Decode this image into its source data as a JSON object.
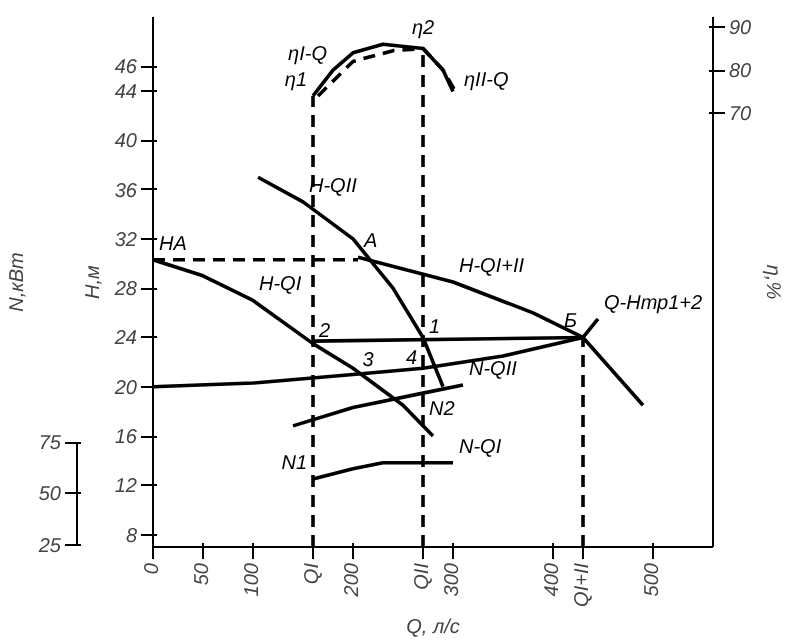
{
  "chart_data": {
    "type": "line",
    "xlabel": "Q, л/с",
    "ylabel": "H,м",
    "y2label": "N,кВт",
    "y3label": "η,%",
    "xlim": [
      0,
      560
    ],
    "xticks": [
      0,
      50,
      100,
      {
        "value": 160,
        "label": "QI"
      },
      200,
      {
        "value": 270,
        "label": "QII"
      },
      300,
      400,
      {
        "value": 430,
        "label": "QI+II"
      },
      500
    ],
    "ylim": [
      7,
      50
    ],
    "yticks": [
      8,
      12,
      16,
      20,
      24,
      28,
      32,
      36,
      40,
      44,
      46
    ],
    "y2lim": [
      23.8,
      282.8
    ],
    "y2ticks": [
      25,
      50,
      75
    ],
    "y3lim": [
      -30.6,
      92.3
    ],
    "y3ticks": [
      70,
      80,
      90
    ],
    "grid": false,
    "marker": "none",
    "line_style": "solid",
    "series": [
      {
        "color": "#000000",
        "x": [
          0,
          50,
          100,
          160,
          200,
          250,
          280
        ],
        "values": [
          30.3,
          29,
          27,
          23.5,
          21.5,
          18.5,
          16
        ]
      },
      {
        "color": "#000000",
        "x": [
          105,
          150,
          200,
          240,
          270,
          290
        ],
        "values": [
          37,
          35,
          32,
          28,
          24,
          20
        ]
      },
      {
        "color": "#000000",
        "x": [
          205,
          300,
          380,
          430,
          490
        ],
        "values": [
          30.5,
          28.5,
          26,
          24,
          18.5
        ]
      },
      {
        "color": "#000000",
        "x": [
          0,
          100,
          200,
          270,
          350,
          430,
          445
        ],
        "values": [
          20,
          20.3,
          21,
          21.5,
          22.5,
          24,
          25.5
        ]
      },
      {
        "color": "#000000",
        "x": [
          160,
          430
        ],
        "values": [
          23.7,
          24
        ]
      },
      {
        "color": "#000000",
        "line_style": "dashed",
        "x": [
          0,
          205
        ],
        "values": [
          30.3,
          30.3
        ]
      },
      {
        "color": "#000000",
        "line_style": "dashed",
        "x": [
          160,
          160
        ],
        "values": [
          7,
          43.6
        ]
      },
      {
        "color": "#000000",
        "line_style": "dashed",
        "x": [
          270,
          270
        ],
        "values": [
          7,
          47.4
        ]
      },
      {
        "color": "#000000",
        "line_style": "dashed",
        "x": [
          430,
          430
        ],
        "values": [
          7,
          24
        ]
      },
      {
        "color": "#000000",
        "axis": "y2",
        "x": [
          160,
          200,
          230,
          300
        ],
        "values": [
          57,
          62,
          65,
          65
        ]
      },
      {
        "color": "#000000",
        "axis": "y2",
        "x": [
          140,
          200,
          270,
          310
        ],
        "values": [
          83,
          92,
          99,
          103
        ]
      },
      {
        "color": "#000000",
        "axis": "y3",
        "x": [
          160,
          180,
          200,
          230,
          270,
          290,
          300
        ],
        "values": [
          74,
          80,
          84,
          86,
          85,
          80,
          75
        ]
      },
      {
        "color": "#000000",
        "axis": "y3",
        "line_style": "dashed",
        "x": [
          165,
          200,
          240,
          270,
          290,
          305
        ],
        "values": [
          74,
          82,
          84.5,
          85,
          80,
          74
        ]
      }
    ],
    "annotations": [
      {
        "text": "η1",
        "x": 160,
        "y": 43.6
      },
      {
        "text": "η2",
        "x": 270,
        "y": 47.45
      },
      {
        "text": "HA",
        "x": 0,
        "y": 30.3
      },
      {
        "text": "A",
        "x": 205,
        "y": 30.5
      },
      {
        "text": "Б",
        "x": 430,
        "y": 24
      },
      {
        "text": "1",
        "x": 270,
        "y": 24
      },
      {
        "text": "2",
        "x": 160,
        "y": 23.7
      },
      {
        "text": "3",
        "x": 215,
        "y": 21
      },
      {
        "text": "4",
        "x": 270,
        "y": 21.5
      },
      {
        "text": "N2",
        "x": 270,
        "y": 19.48
      },
      {
        "text": "N1",
        "x": 160,
        "y": 12.51
      },
      {
        "text": "H-QI",
        "x": 100,
        "y": 27
      },
      {
        "text": "H-QII",
        "x": 150,
        "y": 35
      },
      {
        "text": "H-QI+II",
        "x": 300,
        "y": 28.5
      },
      {
        "text": "Q-Hтр1+2",
        "x": 445,
        "y": 25.5
      },
      {
        "text": "N-QII",
        "x": 310,
        "y": 20.15
      },
      {
        "text": "N-QI",
        "x": 300,
        "y": 13.84
      },
      {
        "text": "ηI-Q",
        "x": 180,
        "y": 45.7
      },
      {
        "text": "ηII-Q",
        "x": 305,
        "y": 43.6
      }
    ]
  }
}
